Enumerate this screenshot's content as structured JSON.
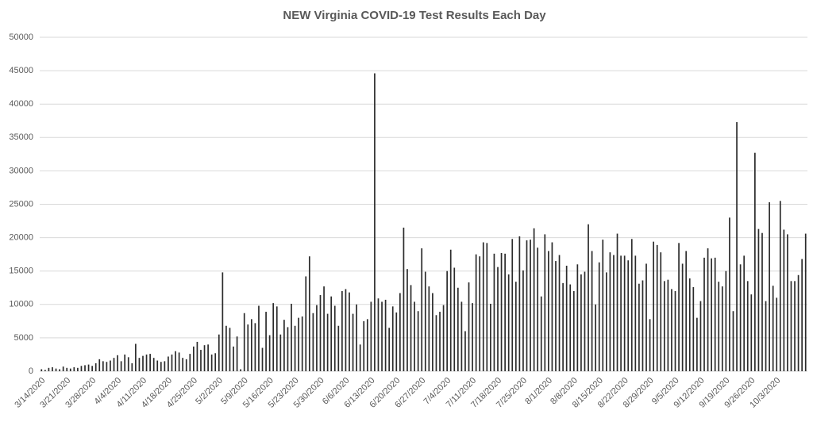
{
  "chart_data": {
    "type": "bar",
    "title": "NEW Virginia COVID-19 Test Results Each Day",
    "categories": [
      "3/14/2020",
      null,
      null,
      null,
      null,
      null,
      null,
      "3/21/2020",
      null,
      null,
      null,
      null,
      null,
      null,
      "3/28/2020",
      null,
      null,
      null,
      null,
      null,
      null,
      "4/4/2020",
      null,
      null,
      null,
      null,
      null,
      null,
      "4/11/2020",
      null,
      null,
      null,
      null,
      null,
      null,
      "4/18/2020",
      null,
      null,
      null,
      null,
      null,
      null,
      "4/25/2020",
      null,
      null,
      null,
      null,
      null,
      null,
      "5/2/2020",
      null,
      null,
      null,
      null,
      null,
      null,
      "5/9/2020",
      null,
      null,
      null,
      null,
      null,
      null,
      "5/16/2020",
      null,
      null,
      null,
      null,
      null,
      null,
      "5/23/2020",
      null,
      null,
      null,
      null,
      null,
      null,
      "5/30/2020",
      null,
      null,
      null,
      null,
      null,
      null,
      "6/6/2020",
      null,
      null,
      null,
      null,
      null,
      null,
      "6/13/2020",
      null,
      null,
      null,
      null,
      null,
      null,
      "6/20/2020",
      null,
      null,
      null,
      null,
      null,
      null,
      "6/27/2020",
      null,
      null,
      null,
      null,
      null,
      null,
      "7/4/2020",
      null,
      null,
      null,
      null,
      null,
      null,
      "7/11/2020",
      null,
      null,
      null,
      null,
      null,
      null,
      "7/18/2020",
      null,
      null,
      null,
      null,
      null,
      null,
      "7/25/2020",
      null,
      null,
      null,
      null,
      null,
      null,
      "8/1/2020",
      null,
      null,
      null,
      null,
      null,
      null,
      "8/8/2020",
      null,
      null,
      null,
      null,
      null,
      null,
      "8/15/2020",
      null,
      null,
      null,
      null,
      null,
      null,
      "8/22/2020",
      null,
      null,
      null,
      null,
      null,
      null,
      "8/29/2020",
      null,
      null,
      null,
      null,
      null,
      null,
      "9/5/2020",
      null,
      null,
      null,
      null,
      null,
      null,
      "9/12/2020",
      null,
      null,
      null,
      null,
      null,
      null,
      "9/19/2020",
      null,
      null,
      null,
      null,
      null,
      null,
      "9/26/2020",
      null,
      null,
      null,
      null,
      null,
      null,
      "10/3/2020",
      null,
      null,
      null,
      null,
      null,
      null,
      null,
      null
    ],
    "values": [
      300,
      200,
      500,
      600,
      400,
      300,
      700,
      500,
      400,
      600,
      500,
      800,
      900,
      1000,
      800,
      1200,
      1800,
      1500,
      1400,
      1600,
      2000,
      2400,
      1500,
      2500,
      2100,
      1200,
      4100,
      2000,
      2300,
      2500,
      2600,
      2000,
      1600,
      1400,
      1500,
      2200,
      2500,
      3000,
      2800,
      2000,
      1800,
      2600,
      3700,
      4400,
      3200,
      3900,
      4000,
      2500,
      2700,
      5500,
      14800,
      6800,
      6500,
      3700,
      5200,
      300,
      8700,
      7000,
      7800,
      7200,
      9800,
      3500,
      8900,
      5400,
      10200,
      9700,
      5500,
      7700,
      6600,
      10100,
      6800,
      8000,
      8200,
      14200,
      17200,
      8700,
      9900,
      11400,
      12700,
      8600,
      11200,
      9800,
      6800,
      12000,
      12300,
      11800,
      8600,
      10000,
      4000,
      7500,
      7800,
      10400,
      44600,
      10900,
      10400,
      10700,
      6500,
      9700,
      8800,
      11700,
      21500,
      15300,
      12900,
      10400,
      9000,
      18400,
      14900,
      12700,
      11700,
      8400,
      8900,
      9900,
      15000,
      18200,
      15500,
      12500,
      10400,
      6000,
      13300,
      10200,
      17500,
      17200,
      19300,
      19200,
      10100,
      17600,
      15600,
      17700,
      17600,
      14500,
      19800,
      13400,
      20200,
      15100,
      19600,
      19700,
      21400,
      18500,
      11200,
      20500,
      18000,
      19300,
      16500,
      17400,
      13200,
      15800,
      13000,
      12000,
      16000,
      14500,
      14900,
      22000,
      18000,
      10000,
      16300,
      19700,
      14800,
      17800,
      17400,
      20600,
      17300,
      17300,
      16600,
      19800,
      17300,
      13100,
      13600,
      16100,
      7800,
      19400,
      18900,
      17800,
      13500,
      13700,
      12300,
      12000,
      19200,
      16100,
      18000,
      13900,
      12600,
      8000,
      10500,
      17000,
      18400,
      16900,
      17000,
      13400,
      12700,
      15000,
      23000,
      9000,
      37300,
      16000,
      17300,
      13500,
      11500,
      32700,
      21300,
      20700,
      10500,
      25300,
      12800,
      11000,
      25500,
      21200,
      20500,
      13500,
      13500,
      14400,
      16800,
      20600
    ],
    "color": "#2b2b2b",
    "ylim": [
      0,
      50000
    ],
    "yticks": [
      0,
      5000,
      10000,
      15000,
      20000,
      25000,
      30000,
      35000,
      40000,
      45000,
      50000
    ],
    "grid": true
  }
}
